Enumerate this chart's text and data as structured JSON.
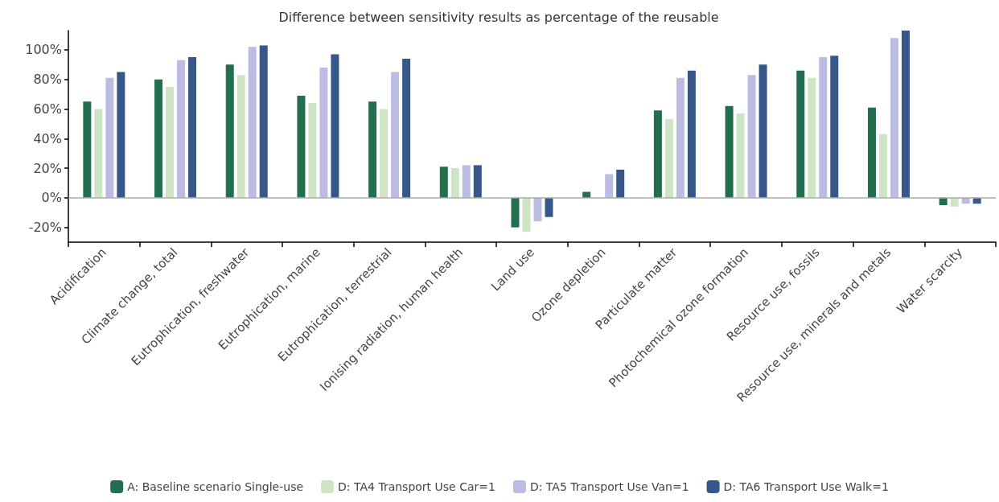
{
  "chart_data": {
    "type": "bar",
    "title": "Difference between sensitivity results as percentage of the reusable",
    "categories": [
      "Acidification",
      "Climate change, total",
      "Eutrophication, freshwater",
      "Eutrophication, marine",
      "Eutrophication, terrestrial",
      "Ionising radiation, human health",
      "Land use",
      "Ozone depletion",
      "Particulate matter",
      "Photochemical ozone formation",
      "Resource use, fossils",
      "Resource use, minerals and metals",
      "Water scarcity"
    ],
    "series": [
      {
        "name": "A: Baseline scenario Single-use",
        "color": "#236e4f",
        "values": [
          65,
          80,
          90,
          69,
          65,
          21,
          -20,
          4,
          59,
          62,
          86,
          61,
          -5
        ]
      },
      {
        "name": "D: TA4 Transport Use Car=1",
        "color": "#cde5c4",
        "values": [
          60,
          75,
          83,
          64,
          60,
          20,
          -23,
          0,
          53,
          57,
          81,
          43,
          -6
        ]
      },
      {
        "name": "D: TA5 Transport Use Van=1",
        "color": "#bcbce3",
        "values": [
          81,
          93,
          102,
          88,
          85,
          22,
          -16,
          16,
          81,
          83,
          95,
          108,
          -4
        ]
      },
      {
        "name": "D: TA6 Transport Use Walk=1",
        "color": "#35578a",
        "values": [
          85,
          95,
          103,
          97,
          94,
          22,
          -13,
          19,
          86,
          90,
          96,
          113,
          -4
        ]
      }
    ],
    "ylim": [
      -30,
      113
    ],
    "yticks": [
      {
        "value": -20,
        "label": "-20%"
      },
      {
        "value": 0,
        "label": "0%"
      },
      {
        "value": 20,
        "label": "20%"
      },
      {
        "value": 40,
        "label": "40%"
      },
      {
        "value": 60,
        "label": "60%"
      },
      {
        "value": 80,
        "label": "80%"
      },
      {
        "value": 100,
        "label": "100%"
      }
    ],
    "ref_lines": [
      {
        "axis": "y",
        "value": 0,
        "color": "#aaaaaa"
      }
    ],
    "grid": false,
    "legend": "bottom"
  }
}
